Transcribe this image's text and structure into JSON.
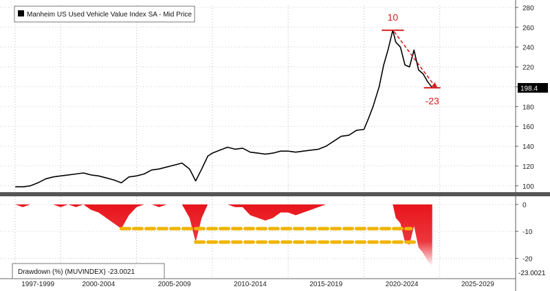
{
  "chart_data": [
    {
      "type": "line",
      "legend": "Manheim US Used Vehicle Value Index SA - Mid Price",
      "legend_position": "top-left",
      "last_value_label": "198.4",
      "ylim": [
        95,
        282
      ],
      "y_ticks": [
        "100",
        "120",
        "140",
        "160",
        "180",
        "200",
        "220",
        "240",
        "260",
        "280"
      ],
      "grid": true,
      "color": "#000000",
      "x": [
        1997.0,
        1997.5,
        1998.0,
        1998.5,
        1999.0,
        1999.5,
        2000.0,
        2000.5,
        2001.0,
        2001.5,
        2002.0,
        2002.5,
        2003.0,
        2003.5,
        2004.0,
        2004.5,
        2005.0,
        2005.5,
        2006.0,
        2006.5,
        2007.0,
        2007.5,
        2008.0,
        2008.5,
        2008.9,
        2009.3,
        2009.7,
        2010.0,
        2010.5,
        2011.0,
        2011.5,
        2012.0,
        2012.5,
        2013.0,
        2013.5,
        2014.0,
        2014.5,
        2015.0,
        2015.5,
        2016.0,
        2016.5,
        2017.0,
        2017.5,
        2018.0,
        2018.5,
        2019.0,
        2019.5,
        2020.0,
        2020.3,
        2020.6,
        2021.0,
        2021.3,
        2021.6,
        2021.9,
        2022.1,
        2022.4,
        2022.7,
        2023.0,
        2023.3,
        2023.6,
        2023.9,
        2024.2,
        2024.5
      ],
      "values": [
        99,
        99,
        100,
        103,
        107,
        109,
        110,
        111,
        112,
        113,
        111,
        110,
        108,
        106,
        103,
        109,
        110,
        112,
        116,
        117,
        119,
        121,
        123,
        117,
        105,
        117,
        130,
        133,
        136,
        139,
        137,
        138,
        134,
        133,
        132,
        133,
        135,
        135,
        134,
        135,
        136,
        137,
        140,
        145,
        150,
        151,
        156,
        157,
        168,
        180,
        200,
        222,
        238,
        257,
        245,
        240,
        222,
        220,
        237,
        217,
        213,
        205,
        199
      ],
      "annotations": [
        {
          "text": "10",
          "x": 2021.9,
          "y": 257
        },
        {
          "text": "-23",
          "x": 2024.5,
          "y": 199
        }
      ]
    },
    {
      "type": "area",
      "legend": "Drawdown (%) (MUVINDEX) -23.0021",
      "legend_position": "bottom-left",
      "last_value_label": "-23.0021",
      "ylim": [
        -24,
        1.5
      ],
      "y_ticks": [
        "0",
        "-10",
        "-20"
      ],
      "grid": true,
      "color": "#e8141b",
      "x": [
        1997.0,
        1997.5,
        1998.0,
        1998.5,
        1999.0,
        1999.5,
        2000.0,
        2000.5,
        2001.0,
        2001.5,
        2002.0,
        2002.5,
        2003.0,
        2003.5,
        2004.0,
        2004.5,
        2005.0,
        2005.5,
        2006.0,
        2006.5,
        2007.0,
        2007.5,
        2008.0,
        2008.5,
        2008.9,
        2009.3,
        2009.7,
        2010.0,
        2010.5,
        2011.0,
        2011.5,
        2012.0,
        2012.5,
        2013.0,
        2013.5,
        2014.0,
        2014.5,
        2015.0,
        2015.5,
        2016.0,
        2016.5,
        2017.0,
        2017.5,
        2018.0,
        2018.5,
        2019.0,
        2019.5,
        2020.0,
        2020.3,
        2020.6,
        2021.0,
        2021.3,
        2021.6,
        2021.9,
        2022.1,
        2022.4,
        2022.7,
        2023.0,
        2023.3,
        2023.6,
        2023.9,
        2024.2,
        2024.5
      ],
      "values": [
        0,
        -1,
        0,
        0,
        0,
        0,
        -1,
        0,
        -1,
        0,
        -2,
        -3,
        -5,
        -7,
        -9,
        -4,
        -1,
        0,
        0,
        -1,
        0,
        0,
        0,
        -5,
        -14,
        -5,
        0,
        0,
        0,
        0,
        -1,
        -1,
        -4,
        -5,
        -6,
        -5,
        -3,
        -3,
        -4,
        -3,
        -2,
        -1,
        0,
        0,
        0,
        0,
        0,
        0,
        0,
        0,
        0,
        0,
        0,
        0,
        -5,
        -7,
        -14,
        -15,
        -8,
        -16,
        -18,
        -21,
        -23
      ],
      "drawdown_lines": [
        {
          "x": [
            2004.0,
            2023.1
          ],
          "y": -9
        },
        {
          "x": [
            2008.9,
            2023.5
          ],
          "y": -14
        }
      ]
    }
  ],
  "x_axis": {
    "labels": [
      "1997-1999",
      "2000-2004",
      "2005-2009",
      "2010-2014",
      "2015-2019",
      "2020-2024",
      "2025-2029"
    ],
    "xlim": [
      1996.0,
      2030.0
    ]
  }
}
